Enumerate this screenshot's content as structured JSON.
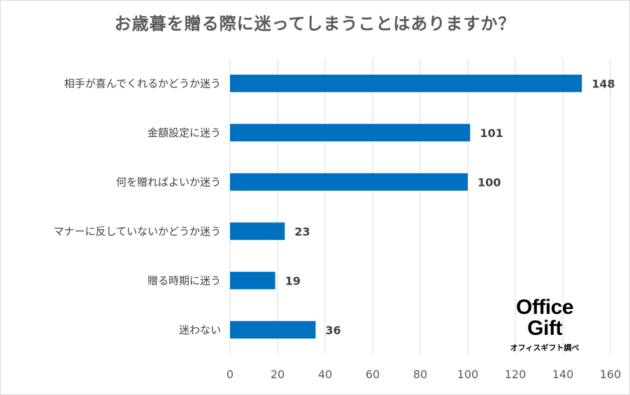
{
  "chart_data": {
    "type": "bar",
    "orientation": "horizontal",
    "title": "お歳暮を贈る際に迷ってしまうことはありますか？",
    "categories": [
      "相手が喜んでくれるかどうか迷う",
      "金額設定に迷う",
      "何を贈ればよいか迷う",
      "マナーに反していないかどうか迷う",
      "贈る時期に迷う",
      "迷わない"
    ],
    "values": [
      148,
      101,
      100,
      23,
      19,
      36
    ],
    "xlim": [
      0,
      160
    ],
    "xticks": [
      "0",
      "20",
      "40",
      "60",
      "80",
      "100",
      "120",
      "140",
      "160"
    ],
    "grid": true,
    "bar_color": "#0070c0"
  },
  "logo": {
    "line1": "Office",
    "line2": "Gift",
    "line3": "オフィスギフト調べ"
  }
}
